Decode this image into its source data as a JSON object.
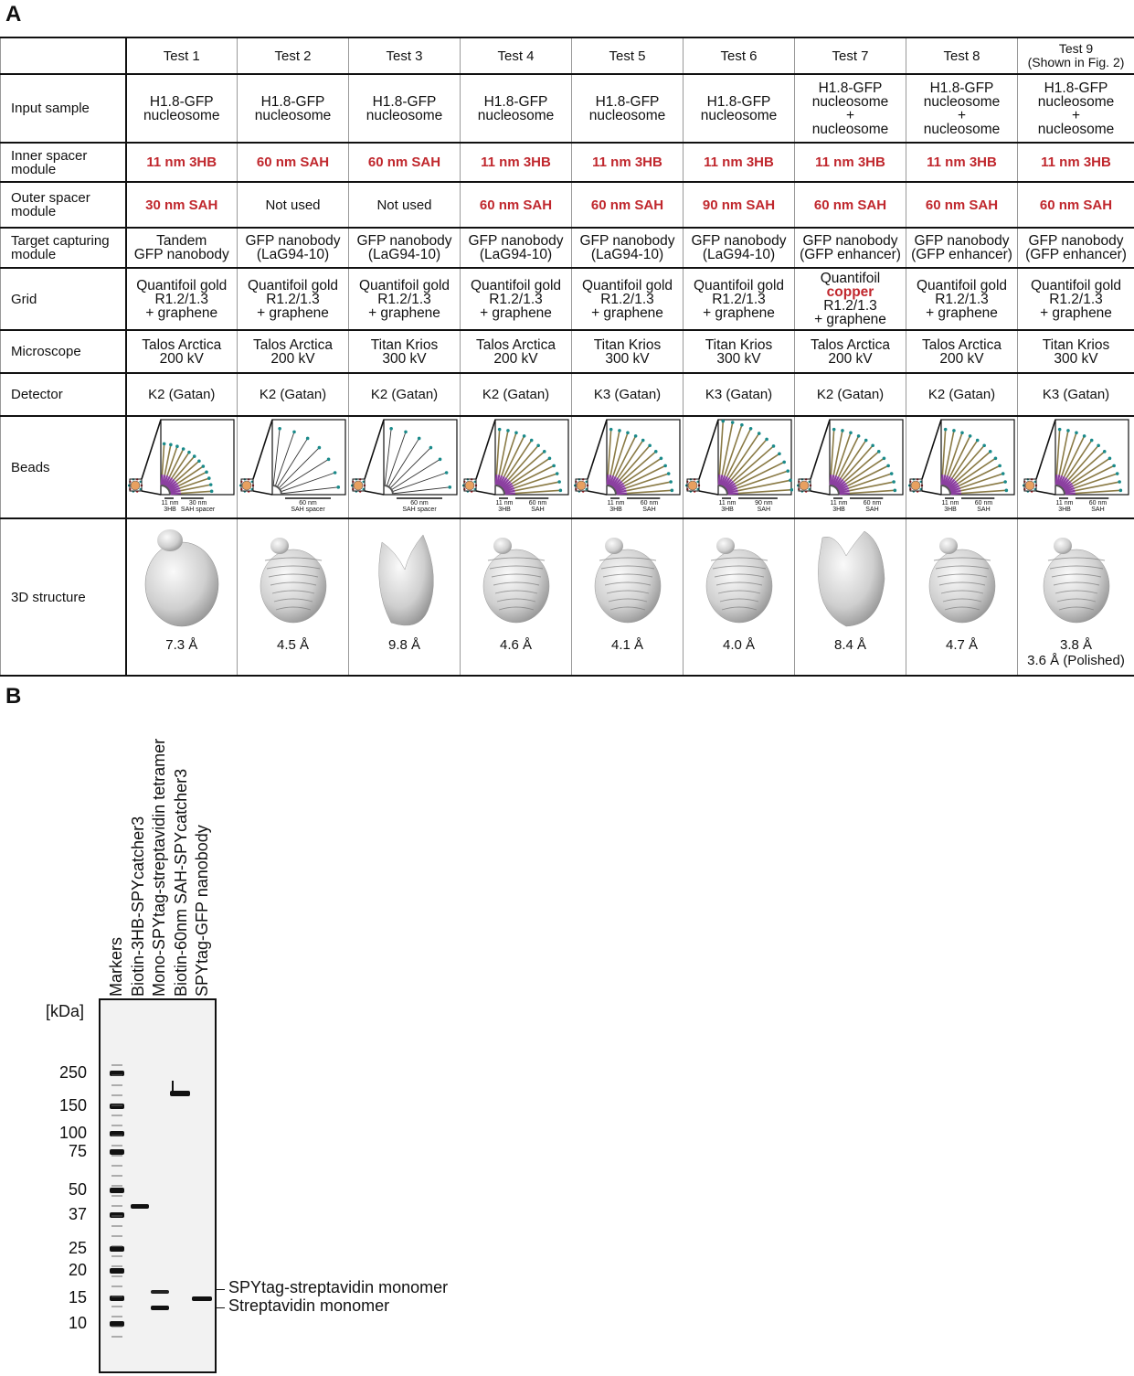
{
  "panel_a": {
    "letter": "A",
    "header": [
      "",
      "Test 1",
      "Test 2",
      "Test 3",
      "Test 4",
      "Test 5",
      "Test 6",
      "Test 7",
      "Test 8",
      "Test 9\n(Shown in Fig. 2)"
    ],
    "rows": {
      "input_sample": {
        "label": "Input sample",
        "cells": [
          "H1.8-GFP\nnucleosome",
          "H1.8-GFP\nnucleosome",
          "H1.8-GFP\nnucleosome",
          "H1.8-GFP\nnucleosome",
          "H1.8-GFP\nnucleosome",
          "H1.8-GFP\nnucleosome",
          "H1.8-GFP\nnucleosome\n+\nnucleosome",
          "H1.8-GFP\nnucleosome\n+\nnucleosome",
          "H1.8-GFP\nnucleosome\n+\nnucleosome"
        ]
      },
      "inner_spacer": {
        "label": "Inner spacer\nmodule",
        "cells": [
          "11 nm 3HB",
          "60 nm SAH",
          "60 nm SAH",
          "11 nm 3HB",
          "11 nm 3HB",
          "11 nm 3HB",
          "11 nm 3HB",
          "11 nm 3HB",
          "11 nm 3HB"
        ]
      },
      "outer_spacer": {
        "label": "Outer spacer\nmodule",
        "cells": [
          "30 nm SAH",
          "Not used",
          "Not used",
          "60 nm SAH",
          "60 nm SAH",
          "90 nm SAH",
          "60 nm SAH",
          "60 nm SAH",
          "60 nm SAH"
        ]
      },
      "target_capturing": {
        "label": "Target capturing\nmodule",
        "cells": [
          "Tandem\nGFP nanobody",
          "GFP nanobody\n(LaG94-10)",
          "GFP nanobody\n(LaG94-10)",
          "GFP nanobody\n(LaG94-10)",
          "GFP nanobody\n(LaG94-10)",
          "GFP nanobody\n(LaG94-10)",
          "GFP nanobody\n(GFP enhancer)",
          "GFP nanobody\n(GFP enhancer)",
          "GFP nanobody\n(GFP enhancer)"
        ]
      },
      "grid": {
        "label": "Grid",
        "cells": [
          "Quantifoil gold\nR1.2/1.3\n+ graphene",
          "Quantifoil gold\nR1.2/1.3\n+ graphene",
          "Quantifoil gold\nR1.2/1.3\n+ graphene",
          "Quantifoil gold\nR1.2/1.3\n+ graphene",
          "Quantifoil gold\nR1.2/1.3\n+ graphene",
          "Quantifoil gold\nR1.2/1.3\n+ graphene",
          "Quantifoil\ncopper\nR1.2/1.3\n+ graphene",
          "Quantifoil gold\nR1.2/1.3\n+ graphene",
          "Quantifoil gold\nR1.2/1.3\n+ graphene"
        ],
        "highlight_word": "copper"
      },
      "microscope": {
        "label": "Microscope",
        "cells": [
          "Talos Arctica\n200 kV",
          "Talos Arctica\n200 kV",
          "Titan Krios\n300 kV",
          "Talos Arctica\n200 kV",
          "Titan Krios\n300 kV",
          "Titan Krios\n300 kV",
          "Talos Arctica\n200 kV",
          "Talos Arctica\n200 kV",
          "Titan Krios\n300 kV"
        ]
      },
      "detector": {
        "label": "Detector",
        "cells": [
          "K2 (Gatan)",
          "K2 (Gatan)",
          "K2 (Gatan)",
          "K2 (Gatan)",
          "K3 (Gatan)",
          "K3 (Gatan)",
          "K2 (Gatan)",
          "K2 (Gatan)",
          "K3 (Gatan)"
        ]
      },
      "beads": {
        "label": "Beads",
        "cells": [
          {
            "inner": "11 nm\n3HB",
            "outer": "30 nm\nSAH spacer"
          },
          {
            "inner": "",
            "outer": "60 nm\nSAH spacer"
          },
          {
            "inner": "",
            "outer": "60 nm\nSAH spacer"
          },
          {
            "inner": "11 nm\n3HB",
            "outer": "60 nm\nSAH"
          },
          {
            "inner": "11 nm\n3HB",
            "outer": "60 nm\nSAH"
          },
          {
            "inner": "11 nm\n3HB",
            "outer": "90 nm\nSAH"
          },
          {
            "inner": "11 nm\n3HB",
            "outer": "60 nm\nSAH"
          },
          {
            "inner": "11 nm\n3HB",
            "outer": "60 nm\nSAH"
          },
          {
            "inner": "11 nm\n3HB",
            "outer": "60 nm\nSAH"
          }
        ]
      },
      "structure": {
        "label": "3D structure",
        "cells": [
          "7.3 Å",
          "4.5 Å",
          "9.8 Å",
          "4.6 Å",
          "4.1 Å",
          "4.0 Å",
          "8.4 Å",
          "4.7 Å",
          "3.8 Å\n3.6 Å (Polished)"
        ]
      }
    },
    "colors": {
      "highlight_red": "#c0272d",
      "bead_purple": "#8b3fa0",
      "bead_teal": "#1a8a8a",
      "rod_olive": "#8a7a45"
    }
  },
  "panel_b": {
    "letter": "B",
    "lanes": [
      "Markers",
      "Biotin-3HB-SPYcatcher3",
      "Mono-SPYtag-streptavidin tetramer",
      "Biotin-60nm SAH-SPYcatcher3",
      "SPYtag-GFP nanobody"
    ],
    "unit_label": "[kDa]",
    "markers_kda": [
      "250",
      "150",
      "100",
      "75",
      "50",
      "37",
      "25",
      "20",
      "15",
      "10"
    ],
    "band_annotations": [
      "SPYtag-streptavidin monomer",
      "Streptavidin monomer"
    ]
  }
}
